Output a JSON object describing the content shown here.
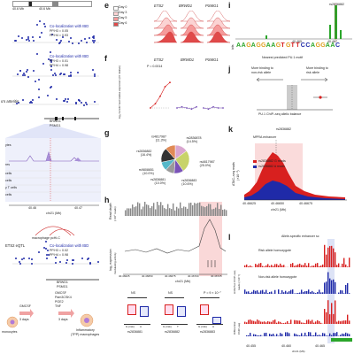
{
  "panel_labels": [
    "e",
    "f",
    "g",
    "h",
    "i",
    "j",
    "k",
    "l"
  ],
  "colors": {
    "dot_blue": "#1f2aa8",
    "red": "#d8201f",
    "pink": "#f5b3b3",
    "green": "#2aa52a",
    "purple": "#7a53b8",
    "gray": "#9a9a9a",
    "light_blue": "#b9c3ee"
  },
  "left": {
    "coords_top": [
      "40.6 Mb",
      "40.6 Mb",
      "40.6 Mb"
    ],
    "coloc1": "Co-localization with IBD",
    "coloc1_pp": [
      "PP.H3 = 0.05",
      "PP.H4 = 0.93"
    ],
    "coloc2": "Co-localization with IBD",
    "coloc2_pp": [
      "PP.H3 = 0.01",
      "PP.H4 = 0.98"
    ],
    "track_label": "u's arteritis",
    "genes": [
      "BRWD1",
      "PSMG1"
    ],
    "rows": [
      "res",
      "cells",
      "cells",
      "y T cells",
      "cells",
      "ytes"
    ],
    "axis_ticks": [
      "40.46",
      "40.47"
    ],
    "axis_label": "chr21 (Mb)",
    "hic": "macrophage pcHi-C",
    "eqtl_title": "ETS2 eQTL",
    "coloc3": "Co-localization with IBD",
    "coloc3_pp": [
      "PP.H3 = 0.02",
      "PP.H4 = 0.98"
    ],
    "genes2": [
      "BRWD1",
      "PSMG1"
    ],
    "workflow": {
      "cytokines1": "GMCSF",
      "days1": "3 days",
      "cytokines2": [
        "GMCSF",
        "Pam3CSK4",
        "PGE2",
        "TNF"
      ],
      "days2": "3 days",
      "start": "monocytes",
      "end": [
        "Inflammatory",
        "(TPP) macrophages"
      ]
    }
  },
  "e": {
    "legend": [
      "Day 0",
      "Day 3",
      "Day 5",
      "Day 6"
    ],
    "genes": [
      "ETS2",
      "BRWD1",
      "PSMG1"
    ]
  },
  "f": {
    "genes": [
      "ETS2",
      "BRWD1",
      "PSMG1"
    ],
    "pvalue": "P = 0.0014",
    "ylabel": "log₂ transformed relative expression (Ct relative)",
    "xlabels": [
      "Day 0",
      "Day 1",
      "Day 3",
      "Day 5",
      "Day 6"
    ]
  },
  "g": {
    "slices": [
      {
        "name": "rs2836878",
        "pct": "(14.5%)",
        "value": 14.5,
        "color": "#d9a6cf"
      },
      {
        "name": "rs4817987",
        "pct": "(25.0%)",
        "value": 25.0,
        "color": "#c8d36a"
      },
      {
        "name": "rs2836883",
        "pct": "(10.6%)",
        "value": 10.6,
        "color": "#7a53b8"
      },
      {
        "name": "rs2836881",
        "pct": "(10.0%)",
        "value": 10.0,
        "color": "#9a9a9a"
      },
      {
        "name": "rs9808651",
        "pct": "(10.0%)",
        "value": 10.0,
        "color": "#55b8c9"
      },
      {
        "name": "rs2836882",
        "pct": "(16.4%)",
        "value": 16.4,
        "color": "#333333"
      },
      {
        "name": "rs4817987",
        "pct": "(11.3%)",
        "value": 11.3,
        "color": "#e08a56"
      }
    ]
  },
  "h": {
    "ylabel1": [
      "Read depth",
      "(×10⁵ reads)"
    ],
    "ylabel2": [
      "log₂ expression",
      "modulating activity"
    ],
    "xticks": [
      "40.46625",
      "40.46650",
      "40.46675",
      "40.46700",
      "40.46725"
    ],
    "xlabel": "chr21 (Mb)",
    "box_snps": [
      "rs2836881",
      "rs2836882",
      "rs2836883"
    ],
    "box_groups": [
      [
        "G (risk)",
        "A"
      ],
      [
        "G (risk)",
        "T"
      ],
      [
        "G (risk)",
        "A"
      ]
    ],
    "box_sig": [
      "NS",
      "NS",
      "P = 9 × 10⁻⁷"
    ]
  },
  "i": {
    "snp": "rs2836882",
    "ylabel": "bits",
    "sequence": "AAGAGGAAGTGTTCCAGGAAC",
    "caption": "Nearest predicted PU.1 motif",
    "xticks": [
      "40.465",
      "40.467"
    ]
  },
  "j": {
    "left": [
      "More binding to",
      "non-risk allele"
    ],
    "right": [
      "More binding to",
      "risk allele"
    ],
    "xlabel": "PU.1 ChIP–seq allelic balance"
  },
  "k": {
    "snp": "rs2836882",
    "title": "MPRA enhancer",
    "legend": [
      "rs2836882 G reads",
      "rs2836882 A reads"
    ],
    "ylabel": [
      "ATAC–seq reads",
      "(×10⁻³)"
    ],
    "xticks": [
      "40.46625",
      "40.46650",
      "40.46675"
    ],
    "xlabel": "chr21 (Mb)"
  },
  "l": {
    "title": "Allele-specific enhancer sc",
    "sub1": "Risk allele homozygote",
    "sub2": "Non-risk allele homozygote",
    "ylabel1": [
      "H3K27ac ChIP–seq",
      "reads (×10⁻³)"
    ],
    "ylabel2": [
      "Differential",
      "ChIP–seq"
    ],
    "xticks": [
      "40.455",
      "40.460",
      "40.465"
    ],
    "xlabel": "chr21 (Mb)"
  }
}
